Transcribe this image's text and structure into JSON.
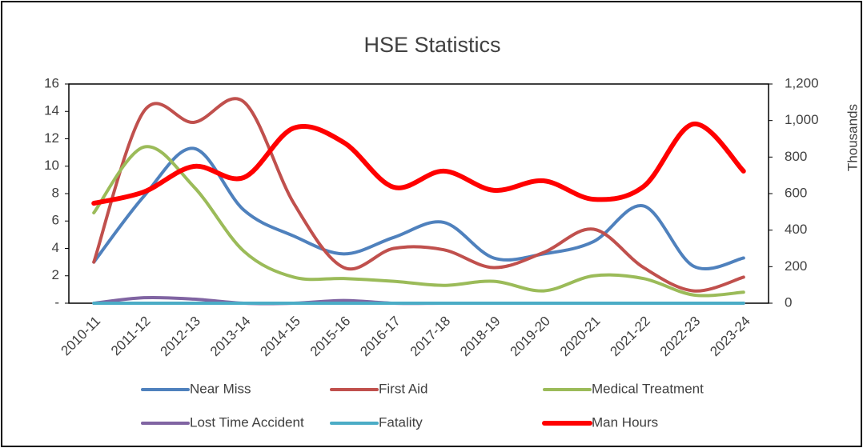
{
  "chart_data": {
    "type": "line",
    "title": "HSE Statistics",
    "categories": [
      "2010-11",
      "2011-12",
      "2012-13",
      "2013-14",
      "2014-15",
      "2015-16",
      "2016-17",
      "2017-18",
      "2018-19",
      "2019-20",
      "2020-21",
      "2021-22",
      "2022-23",
      "2023-24"
    ],
    "series": [
      {
        "name": "Near Miss",
        "color": "#4f81bd",
        "values": [
          3.0,
          7.8,
          11.3,
          6.8,
          4.9,
          3.6,
          4.8,
          5.9,
          3.3,
          3.6,
          4.5,
          7.1,
          2.7,
          3.3
        ]
      },
      {
        "name": "First Aid",
        "color": "#c0504d",
        "values": [
          3.0,
          14.0,
          13.2,
          14.7,
          7.3,
          2.6,
          4.0,
          3.9,
          2.6,
          3.7,
          5.4,
          2.6,
          0.9,
          1.9
        ]
      },
      {
        "name": "Medical Treatment",
        "color": "#9bbb59",
        "values": [
          6.6,
          11.4,
          8.5,
          3.8,
          1.9,
          1.8,
          1.6,
          1.3,
          1.6,
          0.9,
          2.0,
          1.8,
          0.6,
          0.8
        ]
      },
      {
        "name": "Lost Time Accident",
        "color": "#8064a2",
        "values": [
          0,
          0.4,
          0.3,
          0,
          0,
          0.2,
          0,
          0,
          0,
          0,
          0,
          0,
          0,
          0
        ]
      },
      {
        "name": "Fatality",
        "color": "#4bacc6",
        "values": [
          0,
          0,
          0,
          0,
          0,
          0,
          0,
          0,
          0,
          0,
          0,
          0,
          0,
          0
        ]
      },
      {
        "name": "Man Hours",
        "color": "#ff0000",
        "axis": "y2",
        "values": [
          547,
          609,
          749,
          688,
          959,
          880,
          635,
          723,
          618,
          670,
          569,
          639,
          981,
          723
        ]
      }
    ],
    "ylim": [
      0,
      16
    ],
    "yticks": [
      {
        "value": 0,
        "label": "-"
      },
      2,
      4,
      6,
      8,
      10,
      12,
      14,
      16
    ],
    "y2lim": [
      0,
      1200
    ],
    "y2ticks": [
      0,
      200,
      400,
      600,
      800,
      {
        "value": 1000,
        "label": "1,000"
      },
      {
        "value": 1200,
        "label": "1,200"
      }
    ],
    "y2label": "Thousands",
    "grid": false,
    "smooth": true,
    "legend": "bottom"
  }
}
